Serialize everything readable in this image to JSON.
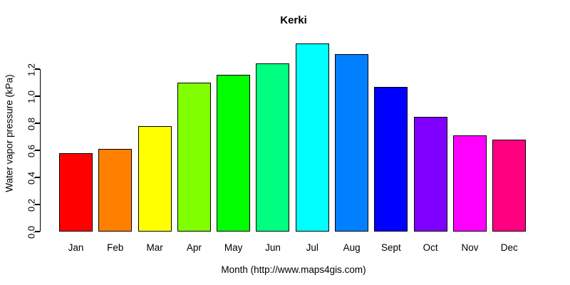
{
  "chart_data": {
    "type": "bar",
    "title": "Kerki",
    "xlabel": "Month (http://www.maps4gis.com)",
    "ylabel": "Water vapor pressure (kPa)",
    "categories": [
      "Jan",
      "Feb",
      "Mar",
      "Apr",
      "May",
      "Jun",
      "Jul",
      "Aug",
      "Sept",
      "Oct",
      "Nov",
      "Dec"
    ],
    "values": [
      0.58,
      0.61,
      0.78,
      1.1,
      1.16,
      1.24,
      1.39,
      1.31,
      1.07,
      0.85,
      0.71,
      0.68
    ],
    "bar_colors": [
      "#FF0000",
      "#FF8000",
      "#FFFF00",
      "#80FF00",
      "#00FF00",
      "#00FF80",
      "#00FFFF",
      "#0080FF",
      "#0000FF",
      "#8000FF",
      "#FF00FF",
      "#FF0080"
    ],
    "bar_border_color": "#000000",
    "yticks": [
      "0.0",
      "0.2",
      "0.4",
      "0.6",
      "0.8",
      "1.0",
      "1.2"
    ],
    "ylim": [
      0,
      1.4
    ],
    "grid": false,
    "legend": null,
    "axis_color": "#000000",
    "text_color": "#000000",
    "background_color": "#FFFFFF"
  }
}
